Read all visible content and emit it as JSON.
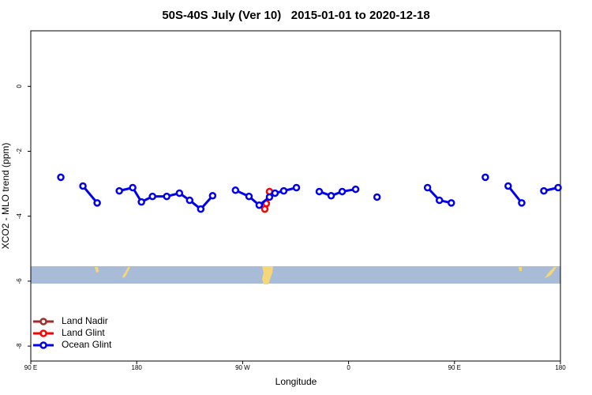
{
  "chart_data": {
    "type": "line",
    "title": "50S-40S July (Ver 10)   2015-01-01 to 2020-12-18",
    "x_label": "Longitude",
    "y_label": "XCO2 - MLO trend (ppm)",
    "xlim": [
      90,
      540
    ],
    "ylim": [
      -8.46,
      1.71
    ],
    "xticks": [
      {
        "value": 90,
        "label": "90 E"
      },
      180,
      {
        "value": 270,
        "label": "90 W"
      },
      {
        "value": 360,
        "label": "0"
      },
      {
        "value": 450,
        "label": "90 E"
      },
      {
        "value": 540,
        "label": "180"
      }
    ],
    "yticks": [
      0,
      -2,
      -4,
      -6,
      -8
    ],
    "legend": "bottom-left",
    "series": [
      {
        "name": "Land Nadir",
        "color": "#a52a2a",
        "x": [],
        "values": []
      },
      {
        "name": "Land Glint",
        "color": "#ff0000",
        "x": [
          288.8,
          290.1,
          292.8
        ],
        "values": [
          -3.78,
          -3.61,
          -3.24
        ]
      },
      {
        "name": "Ocean Glint",
        "color": "#0000ee",
        "x": [
          115.5,
          null,
          134.3,
          146.4,
          null,
          165.2,
          176.6,
          184.0,
          193.4,
          205.5,
          216.3,
          225.0,
          234.4,
          244.5,
          null,
          263.9,
          275.4,
          284.1,
          292.8,
          297.5,
          304.9,
          315.7,
          null,
          335.1,
          345.2,
          354.6,
          366.0,
          null,
          384.2,
          null,
          427.1,
          437.2,
          447.3,
          null,
          476.2,
          null,
          495.6,
          507.1,
          null,
          525.9,
          538.0
        ],
        "values": [
          -2.8,
          null,
          -3.07,
          -3.59,
          null,
          -3.22,
          -3.12,
          -3.56,
          -3.39,
          -3.39,
          -3.29,
          -3.51,
          -3.78,
          -3.37,
          null,
          -3.2,
          -3.39,
          -3.66,
          -3.41,
          -3.29,
          -3.22,
          -3.12,
          null,
          -3.24,
          -3.37,
          -3.24,
          -3.17,
          null,
          -3.41,
          null,
          -3.12,
          -3.51,
          -3.59,
          null,
          -2.8,
          null,
          -3.07,
          -3.59,
          null,
          -3.22,
          -3.12
        ]
      }
    ]
  }
}
